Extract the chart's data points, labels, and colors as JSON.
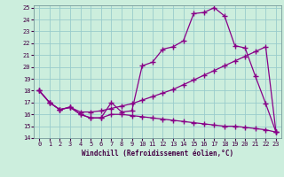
{
  "xlabel": "Windchill (Refroidissement éolien,°C)",
  "background_color": "#cceedd",
  "line_color": "#880088",
  "grid_color": "#99cccc",
  "xlim": [
    -0.5,
    23.5
  ],
  "ylim": [
    14,
    25.2
  ],
  "yticks": [
    14,
    15,
    16,
    17,
    18,
    19,
    20,
    21,
    22,
    23,
    24,
    25
  ],
  "xticks": [
    0,
    1,
    2,
    3,
    4,
    5,
    6,
    7,
    8,
    9,
    10,
    11,
    12,
    13,
    14,
    15,
    16,
    17,
    18,
    19,
    20,
    21,
    22,
    23
  ],
  "series1_x": [
    0,
    1,
    2,
    3,
    4,
    5,
    6,
    7,
    8,
    9,
    10,
    11,
    12,
    13,
    14,
    15,
    16,
    17,
    18,
    19,
    20,
    21,
    22,
    23
  ],
  "series1_y": [
    18.0,
    17.0,
    16.4,
    16.6,
    16.0,
    15.7,
    15.7,
    17.0,
    16.2,
    16.3,
    20.1,
    20.4,
    21.5,
    21.7,
    22.2,
    24.5,
    24.6,
    25.0,
    24.3,
    21.8,
    21.6,
    19.2,
    16.9,
    14.5
  ],
  "series2_x": [
    0,
    1,
    2,
    3,
    4,
    5,
    6,
    7,
    8,
    9,
    10,
    11,
    12,
    13,
    14,
    15,
    16,
    17,
    18,
    19,
    20,
    21,
    22,
    23
  ],
  "series2_y": [
    18.0,
    17.0,
    16.4,
    16.6,
    16.2,
    16.2,
    16.3,
    16.5,
    16.7,
    16.9,
    17.2,
    17.5,
    17.8,
    18.1,
    18.5,
    18.9,
    19.3,
    19.7,
    20.1,
    20.5,
    20.9,
    21.3,
    21.7,
    14.5
  ],
  "series3_x": [
    0,
    1,
    2,
    3,
    4,
    5,
    6,
    7,
    8,
    9,
    10,
    11,
    12,
    13,
    14,
    15,
    16,
    17,
    18,
    19,
    20,
    21,
    22,
    23
  ],
  "series3_y": [
    18.0,
    17.0,
    16.4,
    16.6,
    16.0,
    15.7,
    15.7,
    16.0,
    16.0,
    15.9,
    15.8,
    15.7,
    15.6,
    15.5,
    15.4,
    15.3,
    15.2,
    15.1,
    15.0,
    15.0,
    14.9,
    14.8,
    14.7,
    14.5
  ]
}
